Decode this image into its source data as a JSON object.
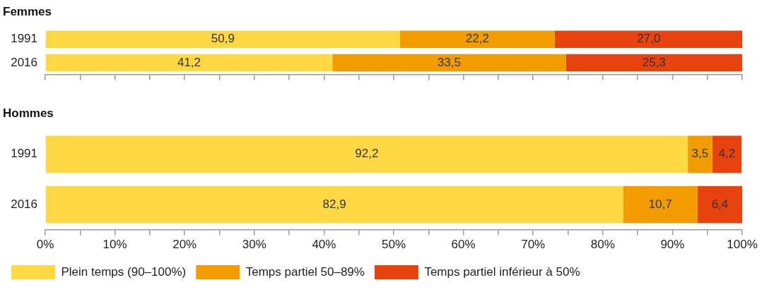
{
  "chart_data": [
    {
      "type": "bar",
      "orientation": "horizontal",
      "stacked": true,
      "title": "Femmes",
      "categories": [
        "1991",
        "2016"
      ],
      "series": [
        {
          "color": "#fdd843",
          "values": [
            50.9,
            41.2
          ],
          "value_labels": [
            "50,9",
            "41,2"
          ]
        },
        {
          "color": "#f39c00",
          "values": [
            22.2,
            33.5
          ],
          "value_labels": [
            "22,2",
            "33,5"
          ]
        },
        {
          "color": "#e8420e",
          "values": [
            27.0,
            25.3
          ],
          "value_labels": [
            "27,0",
            "25,3"
          ]
        }
      ],
      "xlim": [
        0,
        100
      ],
      "xticks": [
        {
          "value": 0,
          "label": null
        },
        {
          "value": 5,
          "label": null
        },
        {
          "value": 10,
          "label": null
        },
        {
          "value": 15,
          "label": null
        },
        {
          "value": 20,
          "label": null
        },
        {
          "value": 25,
          "label": null
        },
        {
          "value": 30,
          "label": null
        },
        {
          "value": 35,
          "label": null
        },
        {
          "value": 40,
          "label": null
        },
        {
          "value": 45,
          "label": null
        },
        {
          "value": 50,
          "label": null
        },
        {
          "value": 55,
          "label": null
        },
        {
          "value": 60,
          "label": null
        },
        {
          "value": 65,
          "label": null
        },
        {
          "value": 70,
          "label": null
        },
        {
          "value": 75,
          "label": null
        },
        {
          "value": 80,
          "label": null
        },
        {
          "value": 85,
          "label": null
        },
        {
          "value": 90,
          "label": null
        },
        {
          "value": 95,
          "label": null
        },
        {
          "value": 100,
          "label": null
        }
      ],
      "grid": false
    },
    {
      "type": "bar",
      "orientation": "horizontal",
      "stacked": true,
      "title": "Hommes",
      "categories": [
        "1991",
        "2016"
      ],
      "series": [
        {
          "name": "Plein temps (90–100%)",
          "color": "#fdd843",
          "values": [
            92.2,
            82.9
          ],
          "value_labels": [
            "92,2",
            "82,9"
          ]
        },
        {
          "name": "Temps partiel 50–89%",
          "color": "#f39c00",
          "values": [
            3.5,
            10.7
          ],
          "value_labels": [
            "3,5",
            "10,7"
          ]
        },
        {
          "name": "Temps partiel inférieur à 50%",
          "color": "#e8420e",
          "values": [
            4.2,
            6.4
          ],
          "value_labels": [
            "4,2",
            "6,4"
          ]
        }
      ],
      "xlim": [
        0,
        100
      ],
      "xticks": [
        {
          "value": 0,
          "label": "0%"
        },
        {
          "value": 5,
          "label": null
        },
        {
          "value": 10,
          "label": "10%"
        },
        {
          "value": 15,
          "label": null
        },
        {
          "value": 20,
          "label": "20%"
        },
        {
          "value": 25,
          "label": null
        },
        {
          "value": 30,
          "label": "30%"
        },
        {
          "value": 35,
          "label": null
        },
        {
          "value": 40,
          "label": "40%"
        },
        {
          "value": 45,
          "label": null
        },
        {
          "value": 50,
          "label": "50%"
        },
        {
          "value": 55,
          "label": null
        },
        {
          "value": 60,
          "label": "60%"
        },
        {
          "value": 65,
          "label": null
        },
        {
          "value": 70,
          "label": "70%"
        },
        {
          "value": 75,
          "label": null
        },
        {
          "value": 80,
          "label": "80%"
        },
        {
          "value": 85,
          "label": null
        },
        {
          "value": 90,
          "label": "90%"
        },
        {
          "value": 95,
          "label": null
        },
        {
          "value": 100,
          "label": "100%"
        }
      ],
      "legend": "bottom",
      "grid": false
    }
  ]
}
